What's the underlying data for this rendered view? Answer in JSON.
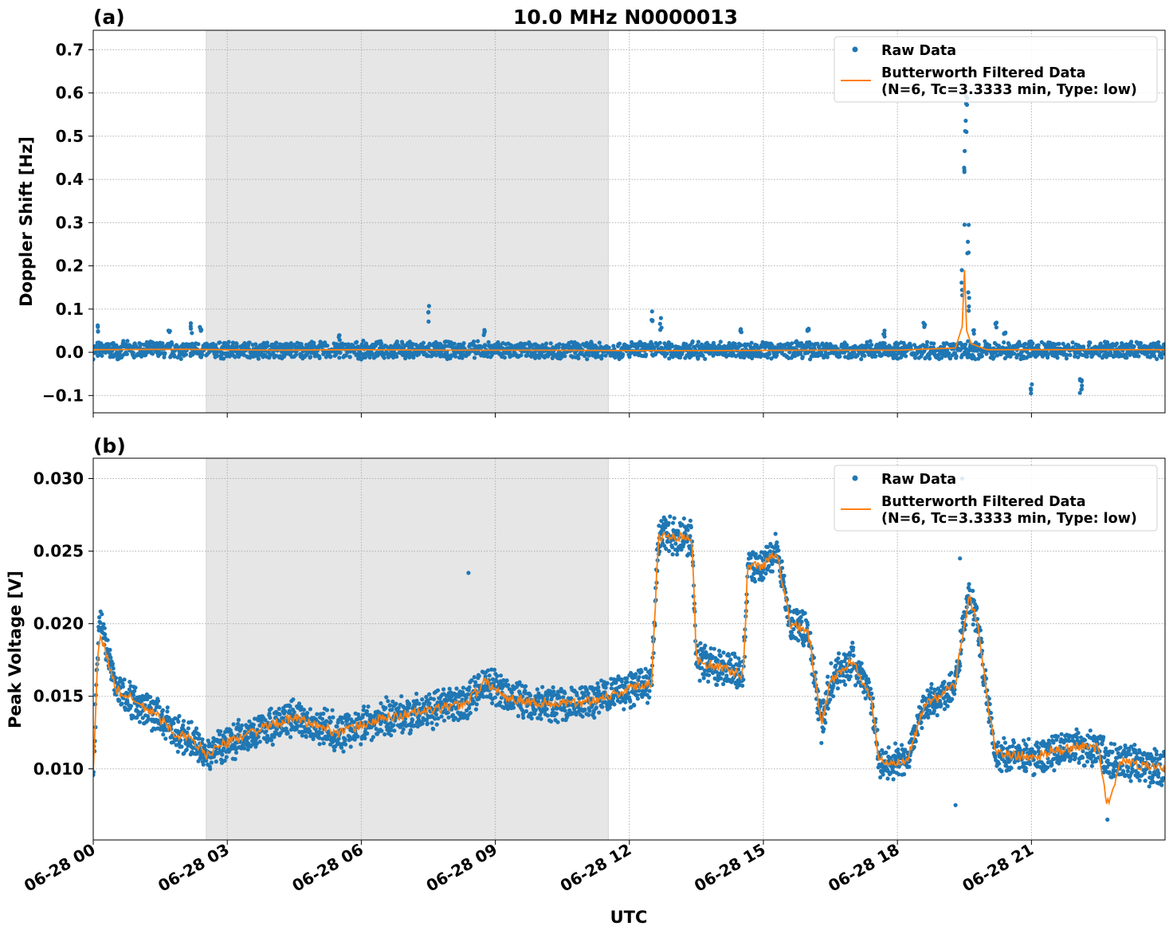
{
  "figure": {
    "title": "10.0 MHz N0000013",
    "xlabel": "UTC",
    "x_tick_labels": [
      "06-28 00",
      "06-28 03",
      "06-28 06",
      "06-28 09",
      "06-28 12",
      "06-28 15",
      "06-28 18",
      "06-28 21"
    ]
  },
  "legend": {
    "raw_label": "Raw Data",
    "filter_label_line1": "Butterworth Filtered Data",
    "filter_label_line2": "(N=6, Tc=3.3333 min, Type: low)",
    "placement": "top-right"
  },
  "colors": {
    "raw": "#1f77b4",
    "filtered": "#ff7f0e",
    "shade": "#e6e6e6",
    "grid": "#b0b0b0"
  },
  "chart_data": [
    {
      "type": "scatter",
      "panel_label": "(a)",
      "ylabel": "Doppler Shift [Hz]",
      "xlim": [
        "2024-06-28 00:00",
        "2024-06-28 23:59"
      ],
      "ylim": [
        -0.14,
        0.745
      ],
      "y_ticks": [
        -0.1,
        0.0,
        0.1,
        0.2,
        0.3,
        0.4,
        0.5,
        0.6,
        0.7
      ],
      "y_tick_labels": [
        "−0.1",
        "0.0",
        "0.1",
        "0.2",
        "0.3",
        "0.4",
        "0.5",
        "0.6",
        "0.7"
      ],
      "grid": true,
      "shaded_interval_hours": [
        2.53,
        11.53
      ],
      "series": [
        {
          "name": "Raw Data",
          "x_hours": [
            0.1,
            1.7,
            2.2,
            2.4,
            5.5,
            7.5,
            8.75,
            12.5,
            12.7,
            14.5,
            16.0,
            17.7,
            18.6,
            19.45,
            19.5,
            19.52,
            19.55,
            19.58,
            19.6,
            19.7,
            20.2,
            20.4,
            21.0,
            22.1,
            22.12
          ],
          "y": [
            0.065,
            0.06,
            0.07,
            0.06,
            0.04,
            0.11,
            0.055,
            0.1,
            0.08,
            0.06,
            0.055,
            0.055,
            0.07,
            0.2,
            0.45,
            0.7,
            0.6,
            0.3,
            0.15,
            0.06,
            0.075,
            0.06,
            -0.1,
            -0.095,
            -0.09
          ],
          "band": {
            "center": 0.005,
            "half_width": 0.022
          }
        },
        {
          "name": "Butterworth Filtered Data (N=6, Tc=3.3333 min, Type: low)",
          "x_hours": [
            0,
            2,
            4,
            6,
            8,
            10,
            12,
            14,
            16,
            18,
            19.3,
            19.45,
            19.5,
            19.55,
            19.65,
            20,
            22,
            23.99
          ],
          "y": [
            0.006,
            0.007,
            0.005,
            0.006,
            0.005,
            0.005,
            0.004,
            0.004,
            0.005,
            0.005,
            0.01,
            0.06,
            0.19,
            0.05,
            0.02,
            0.006,
            0.006,
            0.006
          ]
        }
      ]
    },
    {
      "type": "scatter",
      "panel_label": "(b)",
      "ylabel": "Peak Voltage [V]",
      "xlim": [
        "2024-06-28 00:00",
        "2024-06-28 23:59"
      ],
      "ylim": [
        0.0051,
        0.0314
      ],
      "y_ticks": [
        0.01,
        0.015,
        0.02,
        0.025,
        0.03
      ],
      "y_tick_labels": [
        "0.010",
        "0.015",
        "0.020",
        "0.025",
        "0.030"
      ],
      "grid": true,
      "shaded_interval_hours": [
        2.53,
        11.53
      ],
      "series": [
        {
          "name": "Raw Data",
          "x_hours": [
            0.0,
            0.08,
            0.15,
            0.5,
            1.0,
            1.5,
            1.8,
            2.2,
            2.53,
            2.8,
            3.5,
            4.5,
            5.5,
            6.5,
            7.5,
            8.3,
            8.8,
            9.2,
            10.0,
            10.8,
            11.5,
            12.0,
            12.5,
            12.65,
            13.0,
            13.4,
            13.5,
            14.0,
            14.55,
            14.65,
            15.0,
            15.3,
            15.6,
            16.0,
            16.3,
            16.5,
            17.0,
            17.4,
            17.6,
            17.8,
            18.2,
            18.6,
            19.0,
            19.3,
            19.6,
            19.8,
            20.0,
            20.2,
            20.4,
            21.0,
            22.0,
            22.5,
            22.7,
            23.0,
            23.99
          ],
          "y": [
            0.0095,
            0.0165,
            0.0205,
            0.0155,
            0.0145,
            0.0135,
            0.0125,
            0.012,
            0.011,
            0.0115,
            0.0125,
            0.0135,
            0.0125,
            0.0135,
            0.014,
            0.0145,
            0.016,
            0.015,
            0.0145,
            0.0145,
            0.015,
            0.0155,
            0.016,
            0.026,
            0.026,
            0.026,
            0.0175,
            0.017,
            0.0165,
            0.024,
            0.024,
            0.025,
            0.02,
            0.0195,
            0.013,
            0.016,
            0.0175,
            0.015,
            0.0105,
            0.0105,
            0.0105,
            0.0145,
            0.015,
            0.016,
            0.022,
            0.02,
            0.015,
            0.011,
            0.011,
            0.0108,
            0.0115,
            0.0115,
            0.0105,
            0.0105,
            0.01
          ],
          "band_half_width": 0.0012,
          "outliers": [
            {
              "x_hours": 8.4,
              "y": 0.0235
            },
            {
              "x_hours": 19.45,
              "y": 0.03
            },
            {
              "x_hours": 19.4,
              "y": 0.0245
            },
            {
              "x_hours": 19.3,
              "y": 0.0075
            },
            {
              "x_hours": 22.7,
              "y": 0.0065
            }
          ]
        },
        {
          "name": "Butterworth Filtered Data (N=6, Tc=3.3333 min, Type: low)",
          "x_hours": [
            0.0,
            0.08,
            0.15,
            0.5,
            1.0,
            1.5,
            1.8,
            2.2,
            2.53,
            2.8,
            3.5,
            4.5,
            5.5,
            6.5,
            7.5,
            8.3,
            8.8,
            9.2,
            10.0,
            10.8,
            11.5,
            12.0,
            12.5,
            12.65,
            13.0,
            13.4,
            13.5,
            14.0,
            14.55,
            14.65,
            15.0,
            15.3,
            15.6,
            16.0,
            16.3,
            16.5,
            17.0,
            17.4,
            17.6,
            17.8,
            18.2,
            18.6,
            19.0,
            19.3,
            19.6,
            19.8,
            20.0,
            20.2,
            20.4,
            21.0,
            22.0,
            22.5,
            22.7,
            23.0,
            23.99
          ],
          "y": [
            0.0095,
            0.0165,
            0.0195,
            0.0155,
            0.0145,
            0.0135,
            0.0125,
            0.012,
            0.011,
            0.0115,
            0.0125,
            0.0135,
            0.0125,
            0.0135,
            0.014,
            0.0145,
            0.016,
            0.015,
            0.0145,
            0.0145,
            0.015,
            0.0155,
            0.016,
            0.026,
            0.026,
            0.026,
            0.0175,
            0.017,
            0.0165,
            0.024,
            0.024,
            0.025,
            0.02,
            0.0195,
            0.013,
            0.016,
            0.0175,
            0.015,
            0.0105,
            0.0105,
            0.0105,
            0.0145,
            0.015,
            0.016,
            0.022,
            0.02,
            0.015,
            0.011,
            0.011,
            0.0108,
            0.0115,
            0.0115,
            0.0075,
            0.0105,
            0.01
          ]
        }
      ]
    }
  ]
}
